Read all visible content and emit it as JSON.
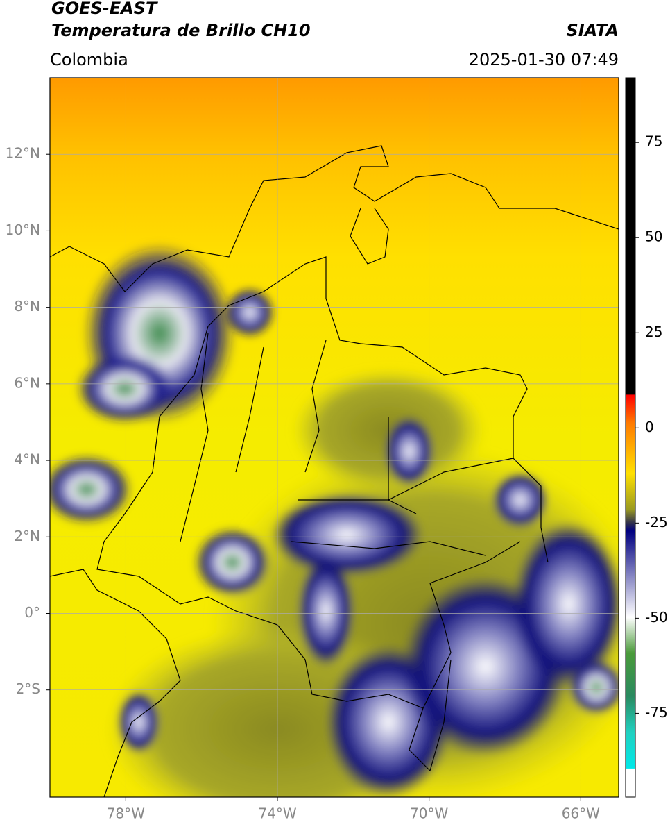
{
  "header": {
    "title": "GOES-EAST",
    "subtitle": "Temperatura de Brillo CH10",
    "source": "SIATA",
    "region": "Colombia",
    "datetime": "2025-01-30 07:49"
  },
  "map": {
    "lonlim": [
      -80,
      -65
    ],
    "latlim": [
      -4.8,
      14
    ],
    "lonticks": [
      {
        "value": -78,
        "label": "78°W"
      },
      {
        "value": -74,
        "label": "74°W"
      },
      {
        "value": -70,
        "label": "70°W"
      },
      {
        "value": -66,
        "label": "66°W"
      }
    ],
    "latticks": [
      {
        "value": 12,
        "label": "12°N"
      },
      {
        "value": 10,
        "label": "10°N"
      },
      {
        "value": 8,
        "label": "8°N"
      },
      {
        "value": 6,
        "label": "6°N"
      },
      {
        "value": 4,
        "label": "4°N"
      },
      {
        "value": 2,
        "label": "2°N"
      },
      {
        "value": 0,
        "label": "0°"
      },
      {
        "value": -2,
        "label": "2°S"
      }
    ]
  },
  "colorbar": {
    "lim": [
      -97,
      92
    ],
    "ticks": [
      75,
      50,
      25,
      0,
      -25,
      -50,
      -75
    ]
  }
}
